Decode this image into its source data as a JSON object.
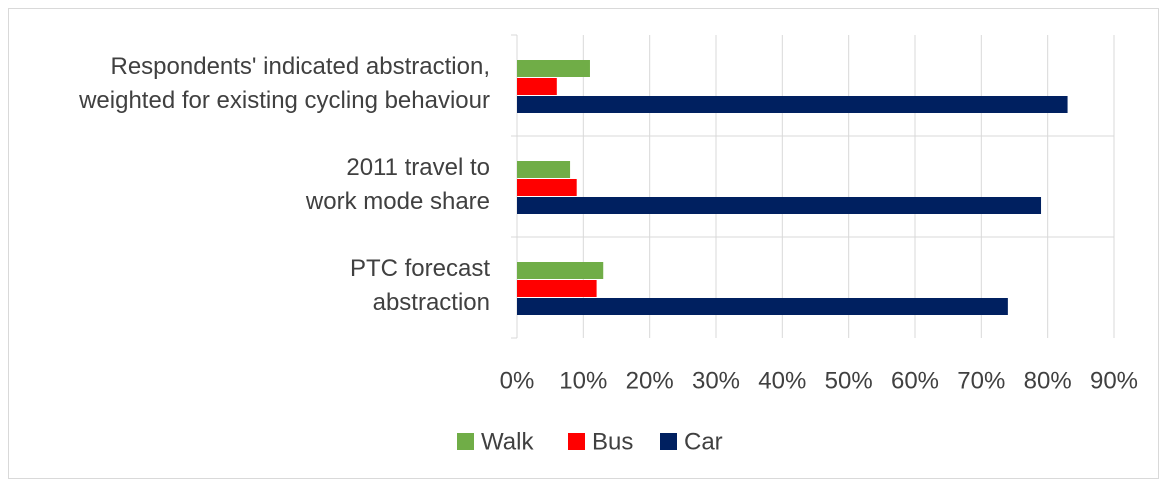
{
  "chart_data": {
    "type": "bar",
    "orientation": "horizontal",
    "categories": [
      [
        "Respondents' indicated abstraction,",
        "weighted for existing cycling behaviour"
      ],
      [
        "2011 travel to",
        "work mode share"
      ],
      [
        "PTC forecast",
        "abstraction"
      ]
    ],
    "series": [
      {
        "name": "Walk",
        "color": "#70ad47",
        "values": [
          11,
          8,
          13
        ]
      },
      {
        "name": "Bus",
        "color": "#ff0000",
        "values": [
          6,
          9,
          12
        ]
      },
      {
        "name": "Car",
        "color": "#002060",
        "values": [
          83,
          79,
          74
        ]
      }
    ],
    "xlim": [
      0,
      90
    ],
    "xticks": [
      {
        "value": 0,
        "label": "0%"
      },
      {
        "value": 10,
        "label": "10%"
      },
      {
        "value": 20,
        "label": "20%"
      },
      {
        "value": 30,
        "label": "30%"
      },
      {
        "value": 40,
        "label": "40%"
      },
      {
        "value": 50,
        "label": "50%"
      },
      {
        "value": 60,
        "label": "60%"
      },
      {
        "value": 70,
        "label": "70%"
      },
      {
        "value": 80,
        "label": "80%"
      },
      {
        "value": 90,
        "label": "90%"
      }
    ],
    "grid": true,
    "legend": "bottom"
  }
}
